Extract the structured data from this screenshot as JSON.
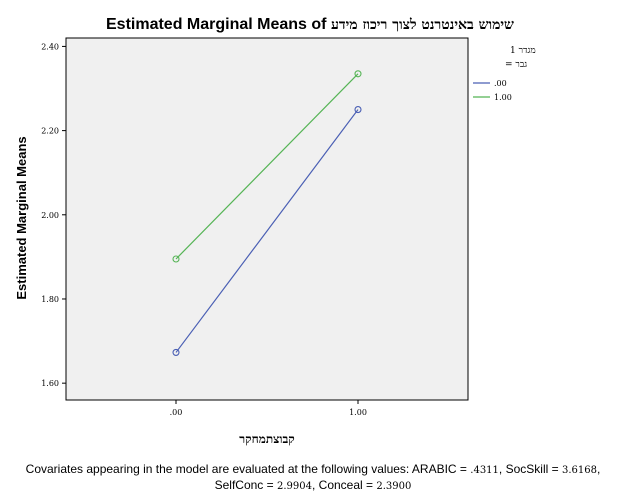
{
  "chart_data": {
    "type": "line",
    "title": "Estimated Marginal Means of",
    "title_dependent": "שימוש באינטרנט לצוך ריכוז מידע",
    "xlabel": "קבוצתמחקר",
    "ylabel": "Estimated Marginal Means",
    "categories": [
      ".00",
      "1.00"
    ],
    "ylim": [
      1.56,
      2.42
    ],
    "yticks": [
      "1.60",
      "1.80",
      "2.00",
      "2.20",
      "2.40"
    ],
    "ytick_values": [
      1.6,
      1.8,
      2.0,
      2.2,
      2.4
    ],
    "legend_title_line1": "מגדר 1",
    "legend_title_line2": "גבר =",
    "legend_position": "top-right",
    "grid": false,
    "plot_background": "#f0f0f0",
    "series": [
      {
        "name": ".00",
        "values": [
          1.673,
          2.25
        ],
        "color": "#4a5fb4"
      },
      {
        "name": "1.00",
        "values": [
          1.895,
          2.335
        ],
        "color": "#55b455"
      }
    ]
  },
  "footnote": {
    "line1": "Covariates appearing in the model are evaluated at the following values: ARABIC =",
    "arabic": ".4311",
    "socskill_label": ", SocSkill =",
    "socskill": "3.6168",
    "line2_self_label": "SelfConc =",
    "selfconc": "2.9904",
    "conceal_label": ", Conceal =",
    "conceal": "2.3900"
  }
}
